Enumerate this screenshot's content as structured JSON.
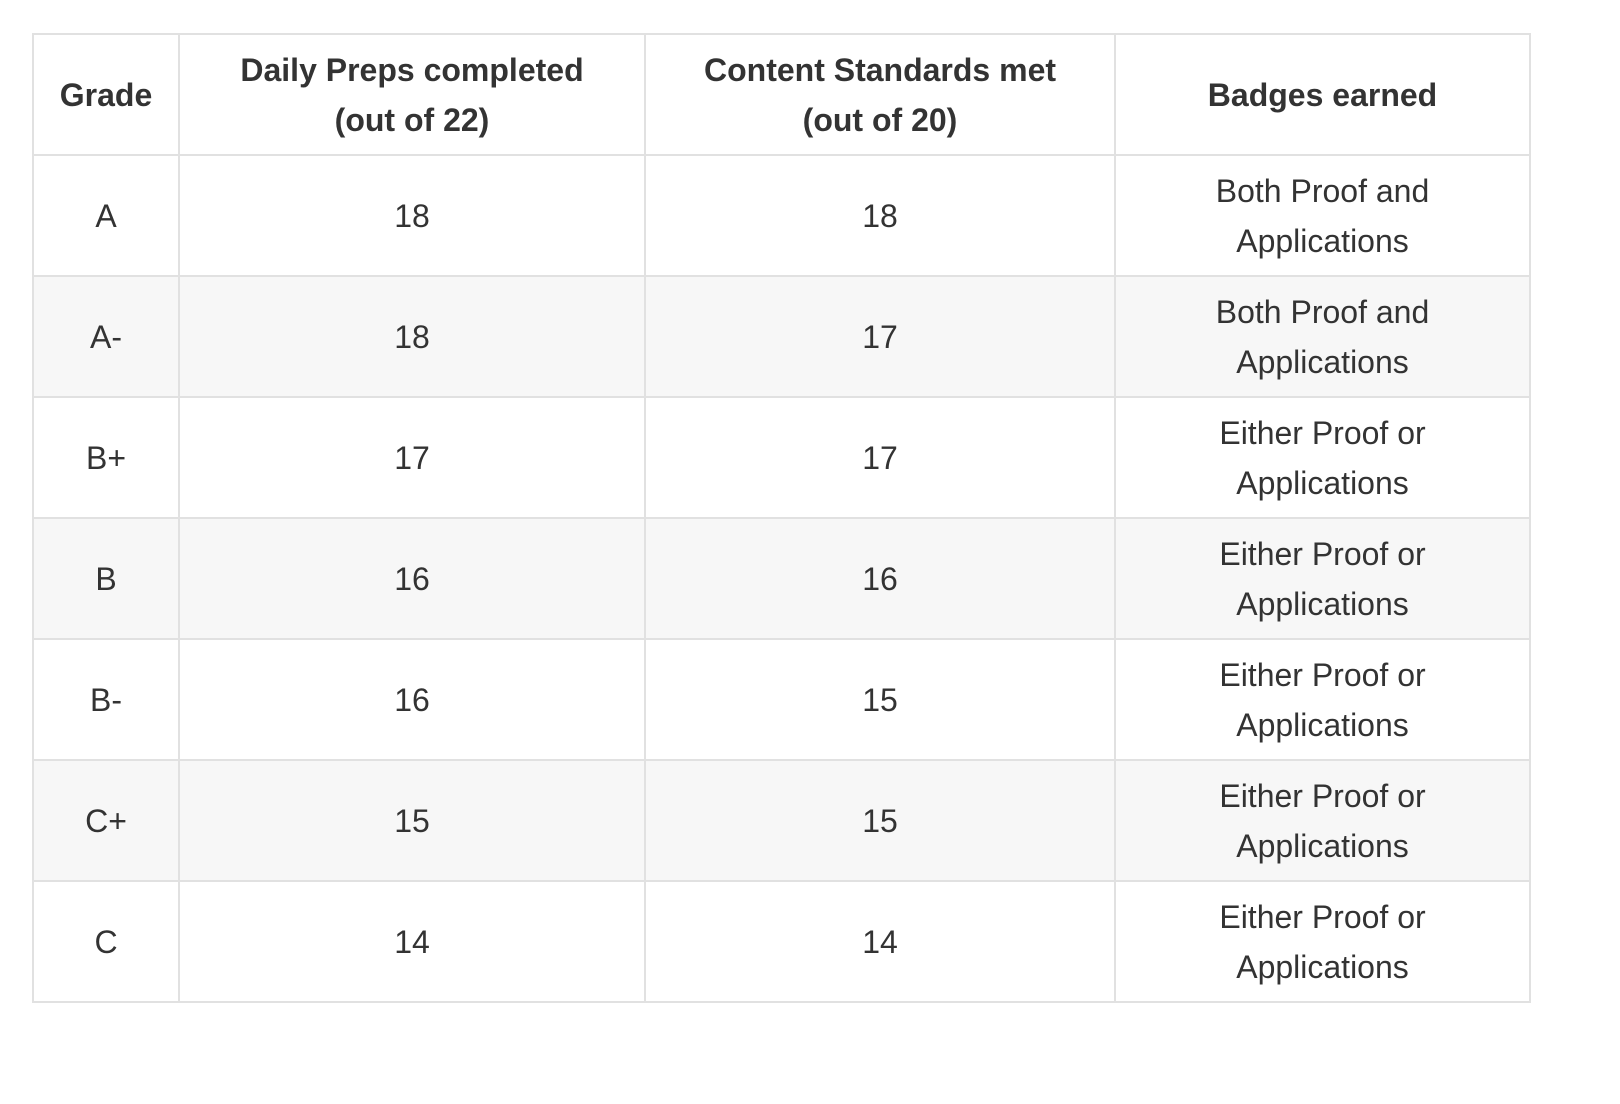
{
  "table": {
    "headers": {
      "grade": "Grade",
      "preps_line1": "Daily Preps completed",
      "preps_line2": "(out of 22)",
      "standards_line1": "Content Standards met",
      "standards_line2": "(out of 20)",
      "badges": "Badges earned"
    },
    "rows": [
      {
        "grade": "A",
        "preps": "18",
        "standards": "18",
        "badges": "Both Proof and Applications"
      },
      {
        "grade": "A-",
        "preps": "18",
        "standards": "17",
        "badges": "Both Proof and Applications"
      },
      {
        "grade": "B+",
        "preps": "17",
        "standards": "17",
        "badges": "Either Proof or Applications"
      },
      {
        "grade": "B",
        "preps": "16",
        "standards": "16",
        "badges": "Either Proof or Applications"
      },
      {
        "grade": "B-",
        "preps": "16",
        "standards": "15",
        "badges": "Either Proof or Applications"
      },
      {
        "grade": "C+",
        "preps": "15",
        "standards": "15",
        "badges": "Either Proof or Applications"
      },
      {
        "grade": "C",
        "preps": "14",
        "standards": "14",
        "badges": "Either Proof or Applications"
      }
    ]
  },
  "colors": {
    "text": "#333333",
    "border": "#e1e1e1",
    "stripe": "#f7f7f7",
    "background": "#ffffff"
  }
}
